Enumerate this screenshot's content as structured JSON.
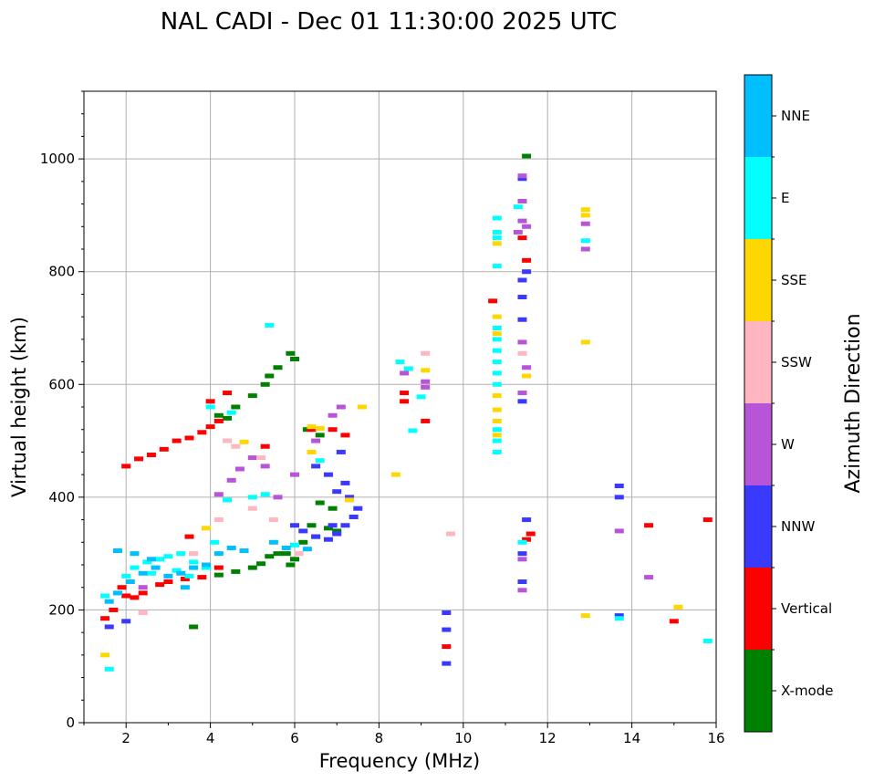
{
  "chart_data": {
    "type": "scatter",
    "title": "NAL CADI - Dec 01 11:30:00 2025 UTC",
    "xlabel": "Frequency (MHz)",
    "ylabel": "Virtual height (km)",
    "xlim": [
      1,
      16
    ],
    "ylim": [
      0,
      1120
    ],
    "x_ticks": [
      2,
      4,
      6,
      8,
      10,
      12,
      14,
      16
    ],
    "y_ticks": [
      0,
      200,
      400,
      600,
      800,
      1000
    ],
    "grid": true,
    "colorbar": {
      "title": "Azimuth Direction",
      "categories": [
        "X-mode",
        "Vertical",
        "NNW",
        "W",
        "SSW",
        "SSE",
        "E",
        "NNE"
      ],
      "colors": [
        "#008000",
        "#ff0000",
        "#3a3aff",
        "#b854d8",
        "#ffb6c1",
        "#ffd700",
        "#00ffff",
        "#00bfff"
      ]
    },
    "series": [
      {
        "name": "X-mode",
        "points": [
          [
            3.6,
            170
          ],
          [
            4.2,
            262
          ],
          [
            4.6,
            268
          ],
          [
            5.0,
            275
          ],
          [
            5.2,
            282
          ],
          [
            5.4,
            295
          ],
          [
            5.6,
            300
          ],
          [
            5.8,
            300
          ],
          [
            6.0,
            290
          ],
          [
            6.2,
            320
          ],
          [
            6.5,
            330
          ],
          [
            6.8,
            345
          ],
          [
            7.0,
            340
          ],
          [
            4.2,
            545
          ],
          [
            4.6,
            560
          ],
          [
            5.0,
            580
          ],
          [
            5.3,
            600
          ],
          [
            5.6,
            630
          ],
          [
            5.9,
            655
          ],
          [
            6.0,
            645
          ],
          [
            6.3,
            520
          ],
          [
            6.6,
            510
          ],
          [
            6.6,
            390
          ],
          [
            6.9,
            380
          ],
          [
            4.4,
            540
          ],
          [
            5.4,
            615
          ],
          [
            11.5,
            1005
          ],
          [
            6.4,
            350
          ],
          [
            5.9,
            280
          ]
        ]
      },
      {
        "name": "Vertical",
        "points": [
          [
            1.5,
            185
          ],
          [
            1.7,
            200
          ],
          [
            2.0,
            225
          ],
          [
            2.4,
            230
          ],
          [
            2.8,
            245
          ],
          [
            3.4,
            255
          ],
          [
            3.8,
            258
          ],
          [
            1.9,
            240
          ],
          [
            2.2,
            222
          ],
          [
            3.0,
            250
          ],
          [
            4.2,
            275
          ],
          [
            2.3,
            468
          ],
          [
            2.6,
            475
          ],
          [
            2.9,
            485
          ],
          [
            3.2,
            500
          ],
          [
            3.5,
            505
          ],
          [
            3.8,
            515
          ],
          [
            4.0,
            525
          ],
          [
            4.2,
            535
          ],
          [
            4.0,
            570
          ],
          [
            4.4,
            585
          ],
          [
            5.3,
            490
          ],
          [
            2.0,
            455
          ],
          [
            6.4,
            520
          ],
          [
            6.9,
            520
          ],
          [
            7.2,
            510
          ],
          [
            9.6,
            135
          ],
          [
            9.1,
            535
          ],
          [
            8.6,
            570
          ],
          [
            8.6,
            585
          ],
          [
            10.7,
            748
          ],
          [
            11.4,
            860
          ],
          [
            11.6,
            335
          ],
          [
            11.5,
            820
          ],
          [
            14.4,
            350
          ],
          [
            15.0,
            180
          ],
          [
            15.8,
            360
          ],
          [
            11.5,
            325
          ],
          [
            3.5,
            330
          ]
        ]
      },
      {
        "name": "NNW",
        "points": [
          [
            1.6,
            170
          ],
          [
            6.2,
            340
          ],
          [
            6.5,
            330
          ],
          [
            6.8,
            325
          ],
          [
            7.0,
            335
          ],
          [
            7.2,
            350
          ],
          [
            7.4,
            365
          ],
          [
            7.5,
            380
          ],
          [
            7.3,
            400
          ],
          [
            7.0,
            410
          ],
          [
            6.8,
            440
          ],
          [
            6.5,
            455
          ],
          [
            7.1,
            480
          ],
          [
            7.2,
            425
          ],
          [
            6.9,
            350
          ],
          [
            9.6,
            165
          ],
          [
            9.6,
            195
          ],
          [
            9.6,
            105
          ],
          [
            11.4,
            250
          ],
          [
            11.4,
            300
          ],
          [
            11.5,
            360
          ],
          [
            11.4,
            570
          ],
          [
            11.4,
            715
          ],
          [
            11.4,
            755
          ],
          [
            11.4,
            785
          ],
          [
            11.5,
            800
          ],
          [
            11.4,
            965
          ],
          [
            13.7,
            400
          ],
          [
            13.7,
            420
          ],
          [
            13.7,
            190
          ],
          [
            2.0,
            180
          ],
          [
            6.0,
            350
          ]
        ]
      },
      {
        "name": "W",
        "points": [
          [
            4.2,
            405
          ],
          [
            4.5,
            430
          ],
          [
            4.7,
            450
          ],
          [
            5.0,
            470
          ],
          [
            5.3,
            455
          ],
          [
            6.0,
            440
          ],
          [
            6.5,
            500
          ],
          [
            6.9,
            545
          ],
          [
            7.1,
            560
          ],
          [
            8.6,
            620
          ],
          [
            9.1,
            595
          ],
          [
            9.1,
            605
          ],
          [
            11.3,
            870
          ],
          [
            11.4,
            290
          ],
          [
            11.4,
            235
          ],
          [
            11.5,
            880
          ],
          [
            11.4,
            890
          ],
          [
            11.4,
            925
          ],
          [
            11.4,
            970
          ],
          [
            11.4,
            585
          ],
          [
            11.4,
            675
          ],
          [
            12.9,
            840
          ],
          [
            12.9,
            885
          ],
          [
            13.7,
            340
          ],
          [
            14.4,
            258
          ],
          [
            11.5,
            630
          ],
          [
            5.6,
            400
          ],
          [
            2.4,
            240
          ]
        ]
      },
      {
        "name": "SSW",
        "points": [
          [
            4.4,
            500
          ],
          [
            4.6,
            490
          ],
          [
            5.0,
            380
          ],
          [
            5.5,
            360
          ],
          [
            4.2,
            360
          ],
          [
            3.6,
            300
          ],
          [
            5.2,
            470
          ],
          [
            9.1,
            655
          ],
          [
            9.7,
            335
          ],
          [
            11.4,
            655
          ],
          [
            2.4,
            195
          ],
          [
            6.1,
            300
          ]
        ]
      },
      {
        "name": "SSE",
        "points": [
          [
            1.5,
            120
          ],
          [
            4.8,
            498
          ],
          [
            6.4,
            480
          ],
          [
            6.4,
            525
          ],
          [
            6.6,
            522
          ],
          [
            7.3,
            395
          ],
          [
            7.6,
            560
          ],
          [
            8.4,
            440
          ],
          [
            9.1,
            625
          ],
          [
            10.8,
            510
          ],
          [
            10.8,
            535
          ],
          [
            10.8,
            555
          ],
          [
            10.8,
            580
          ],
          [
            10.8,
            690
          ],
          [
            10.8,
            720
          ],
          [
            10.8,
            850
          ],
          [
            12.9,
            675
          ],
          [
            12.9,
            900
          ],
          [
            12.9,
            910
          ],
          [
            12.9,
            190
          ],
          [
            15.1,
            205
          ],
          [
            11.5,
            615
          ],
          [
            3.9,
            345
          ]
        ]
      },
      {
        "name": "E",
        "points": [
          [
            1.5,
            225
          ],
          [
            1.6,
            95
          ],
          [
            2.0,
            260
          ],
          [
            2.2,
            275
          ],
          [
            2.5,
            285
          ],
          [
            2.8,
            290
          ],
          [
            3.0,
            295
          ],
          [
            3.3,
            300
          ],
          [
            3.6,
            285
          ],
          [
            3.9,
            275
          ],
          [
            4.1,
            320
          ],
          [
            4.4,
            395
          ],
          [
            5.0,
            400
          ],
          [
            5.3,
            405
          ],
          [
            4.0,
            560
          ],
          [
            4.5,
            550
          ],
          [
            5.4,
            705
          ],
          [
            6.0,
            315
          ],
          [
            6.6,
            465
          ],
          [
            8.5,
            640
          ],
          [
            8.7,
            628
          ],
          [
            9.0,
            578
          ],
          [
            8.8,
            518
          ],
          [
            10.8,
            480
          ],
          [
            10.8,
            500
          ],
          [
            10.8,
            520
          ],
          [
            10.8,
            600
          ],
          [
            10.8,
            620
          ],
          [
            10.8,
            640
          ],
          [
            10.8,
            660
          ],
          [
            10.8,
            680
          ],
          [
            10.8,
            700
          ],
          [
            10.8,
            810
          ],
          [
            10.8,
            860
          ],
          [
            10.8,
            870
          ],
          [
            10.8,
            895
          ],
          [
            11.4,
            320
          ],
          [
            11.3,
            915
          ],
          [
            12.9,
            855
          ],
          [
            13.7,
            185
          ],
          [
            15.8,
            145
          ],
          [
            2.6,
            265
          ],
          [
            3.2,
            270
          ],
          [
            3.5,
            260
          ]
        ]
      },
      {
        "name": "NNE",
        "points": [
          [
            1.6,
            215
          ],
          [
            1.8,
            230
          ],
          [
            2.1,
            250
          ],
          [
            2.4,
            265
          ],
          [
            2.7,
            275
          ],
          [
            3.0,
            260
          ],
          [
            3.3,
            265
          ],
          [
            3.6,
            275
          ],
          [
            3.9,
            280
          ],
          [
            4.2,
            300
          ],
          [
            4.5,
            310
          ],
          [
            4.8,
            305
          ],
          [
            5.5,
            320
          ],
          [
            5.8,
            310
          ],
          [
            6.3,
            308
          ],
          [
            1.8,
            305
          ],
          [
            2.2,
            300
          ],
          [
            2.6,
            290
          ],
          [
            3.4,
            240
          ]
        ]
      }
    ]
  }
}
